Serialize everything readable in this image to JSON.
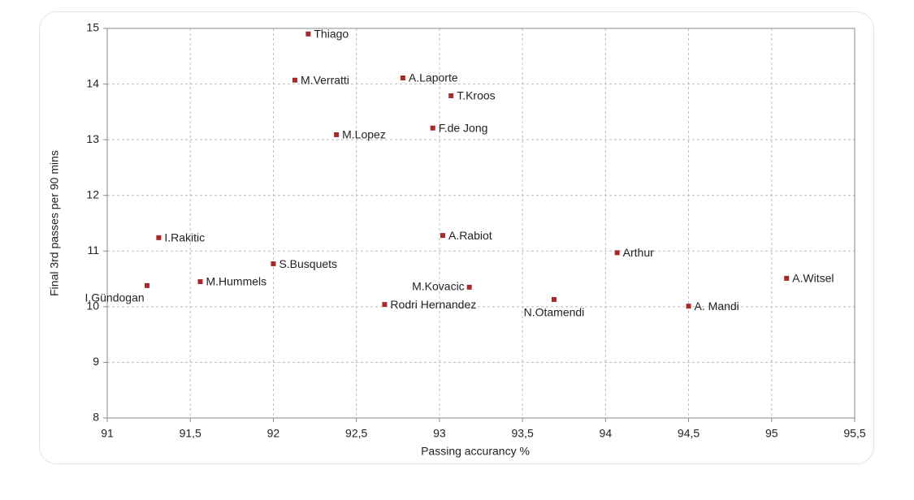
{
  "chart_data": {
    "type": "scatter",
    "x_label": "Passing accurancy %",
    "y_label": "Final 3rd passes per 90 mins",
    "color": "#a52a2a",
    "grid": true,
    "xlim": [
      91,
      95.5
    ],
    "xticks": [
      91,
      {
        "value": 91.5,
        "label": "91,5"
      },
      92,
      {
        "value": 92.5,
        "label": "92,5"
      },
      93,
      {
        "value": 93.5,
        "label": "93,5"
      },
      94,
      {
        "value": 94.5,
        "label": "94,5"
      },
      95,
      {
        "value": 95.5,
        "label": "95,5"
      }
    ],
    "ylim": [
      8,
      15
    ],
    "yticks": [
      8,
      9,
      10,
      11,
      12,
      13,
      14,
      15
    ],
    "labels": [
      "Thiago",
      "M.Verratti",
      "A.Laporte",
      "T.Kroos",
      "F.de Jong",
      "M.Lopez",
      "I.Rakitic",
      "A.Rabiot",
      "Arthur",
      "S.Busquets",
      "M.Hummels",
      "I.Gündogan",
      "M.Kovacic",
      "A.Witsel",
      "N.Otamendi",
      "Rodri Hernandez",
      "A. Mandi"
    ],
    "x": [
      92.21,
      92.13,
      92.78,
      93.07,
      92.96,
      92.38,
      91.31,
      93.02,
      94.07,
      92.0,
      91.56,
      91.24,
      93.18,
      95.09,
      93.69,
      92.67,
      94.5
    ],
    "y": [
      14.9,
      14.07,
      14.11,
      13.79,
      13.21,
      13.09,
      11.24,
      11.28,
      10.97,
      10.77,
      10.45,
      10.38,
      10.35,
      10.51,
      10.13,
      10.04,
      10.01
    ]
  }
}
